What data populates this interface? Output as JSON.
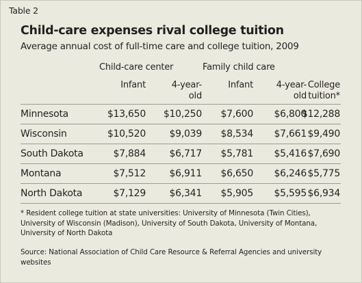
{
  "label": "Table 2",
  "chart_data": {
    "type": "table",
    "title": "Child-care expenses rival college tuition",
    "subtitle": "Average annual cost of full-time care and college tuition, 2009",
    "column_groups": [
      {
        "label": "Child-care center",
        "columns": [
          "Infant",
          "4-year-old"
        ]
      },
      {
        "label": "Family child care",
        "columns": [
          "Infant",
          "4-year-old"
        ]
      }
    ],
    "columns": [
      "Infant",
      "4-year-\nold",
      "Infant",
      "4-year-\nold",
      "College\ntuition*"
    ],
    "rows": [
      {
        "label": "Minnesota",
        "values": [
          "$13,650",
          "$10,250",
          "$7,600",
          "$6,800",
          "$12,288"
        ]
      },
      {
        "label": "Wisconsin",
        "values": [
          "$10,520",
          "$9,039",
          "$8,534",
          "$7,661",
          "$9,490"
        ]
      },
      {
        "label": "South Dakota",
        "values": [
          "$7,884",
          "$6,717",
          "$5,781",
          "$5,416",
          "$7,690"
        ]
      },
      {
        "label": "Montana",
        "values": [
          "$7,512",
          "$6,911",
          "$6,650",
          "$6,246",
          "$5,775"
        ]
      },
      {
        "label": "North Dakota",
        "values": [
          "$7,129",
          "$6,341",
          "$5,905",
          "$5,595",
          "$6,934"
        ]
      }
    ],
    "footnote": "* Resident college tuition at state universities: University of Minnesota (Twin Cities), University of Wisconsin (Madison), University of South Dakota, University of Montana, University of North Dakota",
    "source": "Source: National Association of Child Care Resource & Referral Agencies and university websites"
  },
  "colors": {
    "background": "#ebeadf",
    "text": "#231f20",
    "rule": "#9c9b92"
  }
}
